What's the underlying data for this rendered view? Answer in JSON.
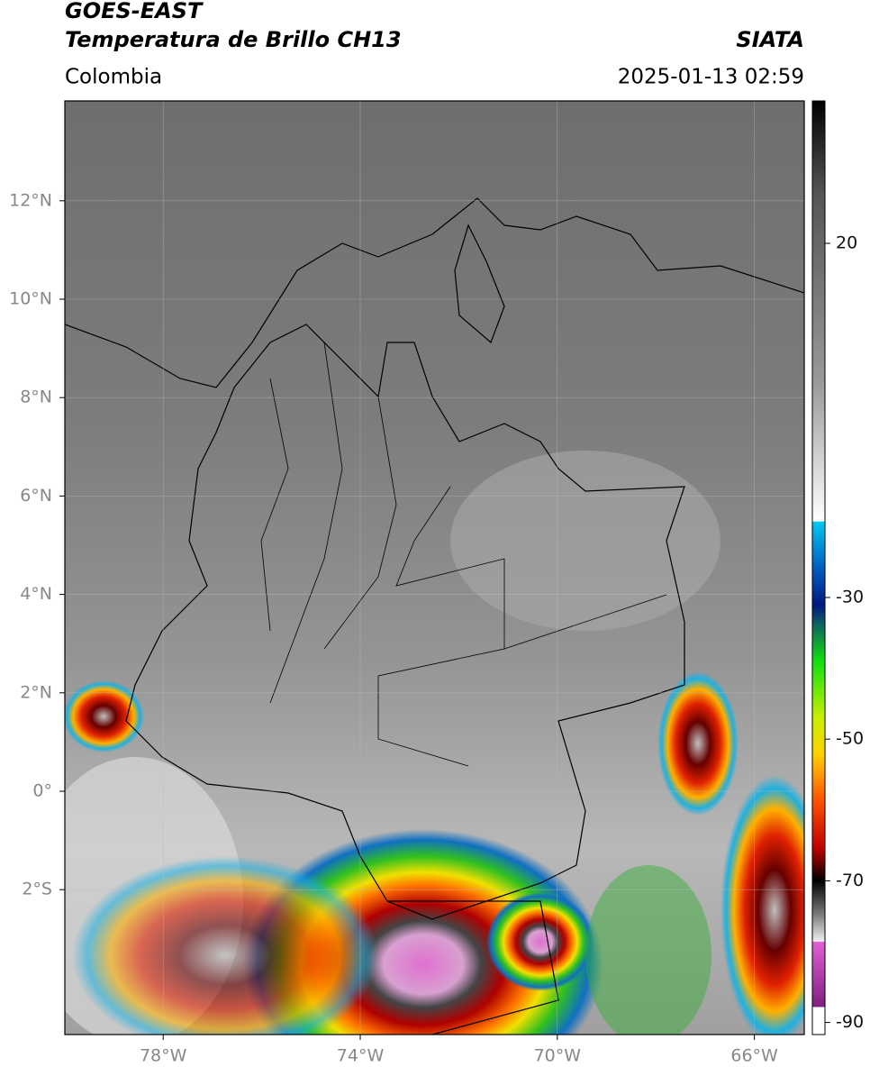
{
  "header": {
    "title": "GOES-EAST",
    "subtitle": "Temperatura de Brillo CH13",
    "source": "SIATA",
    "region": "Colombia",
    "datetime": "2025-01-13 02:59"
  },
  "map": {
    "lon_ticks": [
      {
        "value": -78,
        "label": "78°W"
      },
      {
        "value": -74,
        "label": "74°W"
      },
      {
        "value": -70,
        "label": "70°W"
      },
      {
        "value": -66,
        "label": "66°W"
      }
    ],
    "lat_ticks": [
      {
        "value": 12,
        "label": "12°N"
      },
      {
        "value": 10,
        "label": "10°N"
      },
      {
        "value": 8,
        "label": "8°N"
      },
      {
        "value": 6,
        "label": "6°N"
      },
      {
        "value": 4,
        "label": "4°N"
      },
      {
        "value": 2,
        "label": "2°N"
      },
      {
        "value": 0,
        "label": "0°"
      },
      {
        "value": -2,
        "label": "2°S"
      }
    ]
  },
  "colorbar": {
    "ticks": [
      20,
      -30,
      -50,
      -70,
      -90
    ]
  }
}
